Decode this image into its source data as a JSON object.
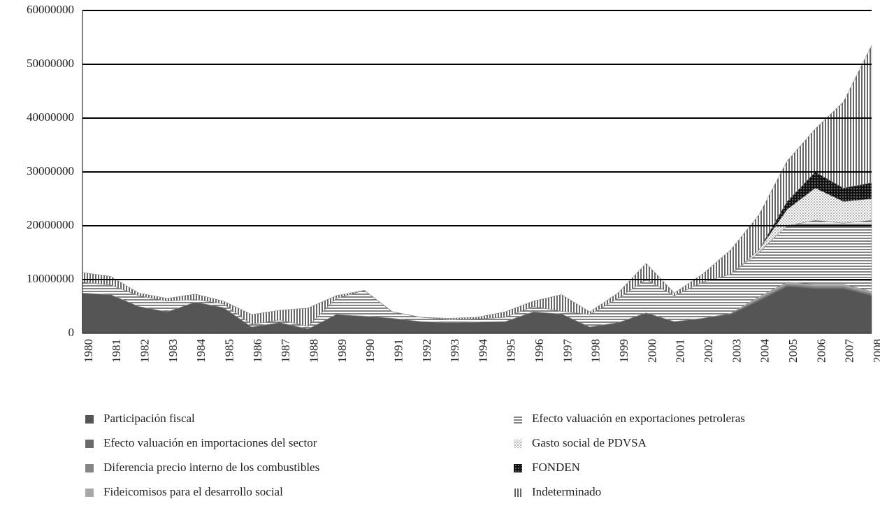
{
  "chart_data": {
    "type": "stacked-area",
    "categories": [
      "1980",
      "1981",
      "1982",
      "1983",
      "1984",
      "1985",
      "1986",
      "1987",
      "1988",
      "1989",
      "1990",
      "1991",
      "1992",
      "1993",
      "1994",
      "1995",
      "1996",
      "1997",
      "1998",
      "1999",
      "2000",
      "2001",
      "2002",
      "2003",
      "2004",
      "2005",
      "2006",
      "2007",
      "2008"
    ],
    "series": [
      {
        "name": "Participación fiscal",
        "color": "#555555",
        "pattern": "solid",
        "values": [
          7500000,
          7200000,
          5000000,
          4000000,
          5800000,
          4800000,
          1200000,
          2000000,
          800000,
          3500000,
          3200000,
          2800000,
          2200000,
          2000000,
          2100000,
          2200000,
          4000000,
          3600000,
          1200000,
          2000000,
          3800000,
          2200000,
          2800000,
          3500000,
          6000000,
          8700000,
          8300000,
          8300000,
          7000000
        ]
      },
      {
        "name": "Efecto valuación en importaciones del sector",
        "color": "#6a6a6a",
        "pattern": "solid",
        "values": [
          0,
          0,
          0,
          0,
          0,
          0,
          0,
          0,
          0,
          0,
          0,
          0,
          0,
          0,
          0,
          0,
          0,
          0,
          0,
          0,
          0,
          0,
          0,
          200000,
          200000,
          200000,
          200000,
          200000,
          200000
        ]
      },
      {
        "name": "Diferencia precio interno de los combustibles",
        "color": "#858585",
        "pattern": "solid",
        "values": [
          0,
          0,
          0,
          0,
          0,
          0,
          0,
          0,
          0,
          0,
          0,
          0,
          0,
          0,
          0,
          0,
          0,
          0,
          0,
          0,
          0,
          0,
          0,
          0,
          300000,
          300000,
          300000,
          300000,
          300000
        ]
      },
      {
        "name": "Fideicomisos para el desarrollo social",
        "color": "#a8a8a8",
        "pattern": "solid",
        "values": [
          0,
          0,
          0,
          0,
          0,
          0,
          0,
          0,
          0,
          0,
          0,
          0,
          0,
          0,
          0,
          0,
          0,
          0,
          0,
          0,
          0,
          0,
          0,
          0,
          300000,
          300000,
          300000,
          300000,
          300000
        ]
      },
      {
        "name": "Efecto valuación en exportaciones petroleras",
        "color": "#333333",
        "pattern": "hlines",
        "values": [
          2000000,
          1800000,
          2000000,
          2000000,
          500000,
          700000,
          500000,
          500000,
          500000,
          3000000,
          4800000,
          1200000,
          800000,
          600000,
          600000,
          800000,
          1000000,
          500000,
          2300000,
          4500000,
          6200000,
          4800000,
          6700000,
          7300000,
          8200000,
          10500000,
          11900000,
          11400000,
          13200000
        ]
      },
      {
        "name": "Gasto social de PDVSA",
        "color": "#555555",
        "pattern": "dots",
        "values": [
          0,
          0,
          0,
          0,
          0,
          0,
          0,
          0,
          0,
          0,
          0,
          0,
          0,
          0,
          0,
          0,
          0,
          0,
          0,
          0,
          0,
          0,
          0,
          0,
          500000,
          3000000,
          6000000,
          4000000,
          4000000
        ]
      },
      {
        "name": "FONDEN",
        "color": "#111111",
        "pattern": "dark",
        "values": [
          0,
          0,
          0,
          0,
          0,
          0,
          0,
          0,
          0,
          0,
          0,
          0,
          0,
          0,
          0,
          0,
          0,
          0,
          0,
          0,
          0,
          0,
          0,
          0,
          0,
          1500000,
          3000000,
          2500000,
          3000000
        ]
      },
      {
        "name": "Indeterminado",
        "color": "#333333",
        "pattern": "vlines",
        "values": [
          1800000,
          1600000,
          500000,
          500000,
          1000000,
          500000,
          1800000,
          1800000,
          3400000,
          500000,
          0,
          0,
          0,
          200000,
          300000,
          1000000,
          1000000,
          3100000,
          500000,
          1000000,
          3000000,
          500000,
          1500000,
          4500000,
          6500000,
          7500000,
          8000000,
          16000000,
          25500000
        ]
      }
    ],
    "ylim": [
      0,
      60000000
    ],
    "yticks": [
      0,
      10000000,
      20000000,
      30000000,
      40000000,
      50000000,
      60000000
    ],
    "grid": true
  }
}
